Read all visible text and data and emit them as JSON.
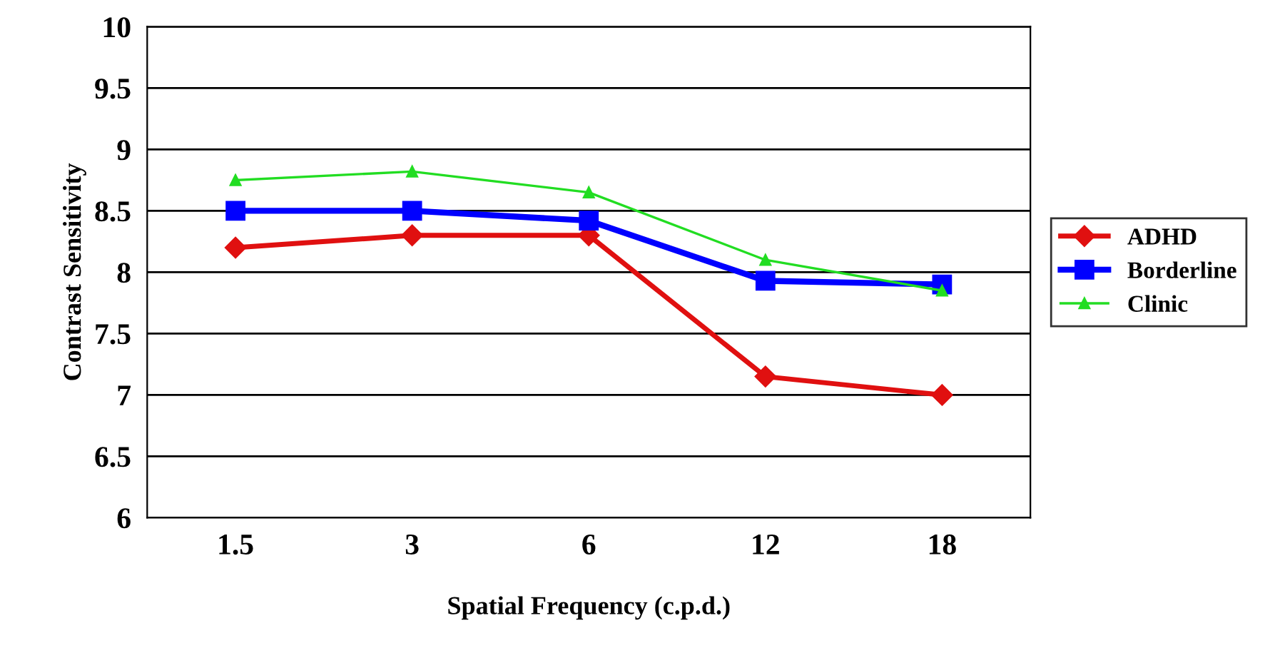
{
  "chart_data": {
    "type": "line",
    "xlabel": "Spatial Frequency (c.p.d.)",
    "ylabel": "Contrast Sensitivity",
    "categories": [
      "1.5",
      "3",
      "6",
      "12",
      "18"
    ],
    "series": [
      {
        "name": "ADHD",
        "color": "#e01010",
        "marker": "diamond",
        "values": [
          8.2,
          8.3,
          8.3,
          7.15,
          7.0
        ]
      },
      {
        "name": "Borderline",
        "color": "#0000ff",
        "marker": "square",
        "values": [
          8.5,
          8.5,
          8.42,
          7.93,
          7.9
        ]
      },
      {
        "name": "Clinic",
        "color": "#22dd22",
        "marker": "triangle",
        "values": [
          8.75,
          8.82,
          8.65,
          8.1,
          7.85
        ]
      }
    ],
    "ylim": [
      6,
      10
    ],
    "yticks": [
      6,
      6.5,
      7,
      7.5,
      8,
      8.5,
      9,
      9.5,
      10
    ],
    "grid": "y",
    "legend": "right",
    "line_style": "solid"
  }
}
